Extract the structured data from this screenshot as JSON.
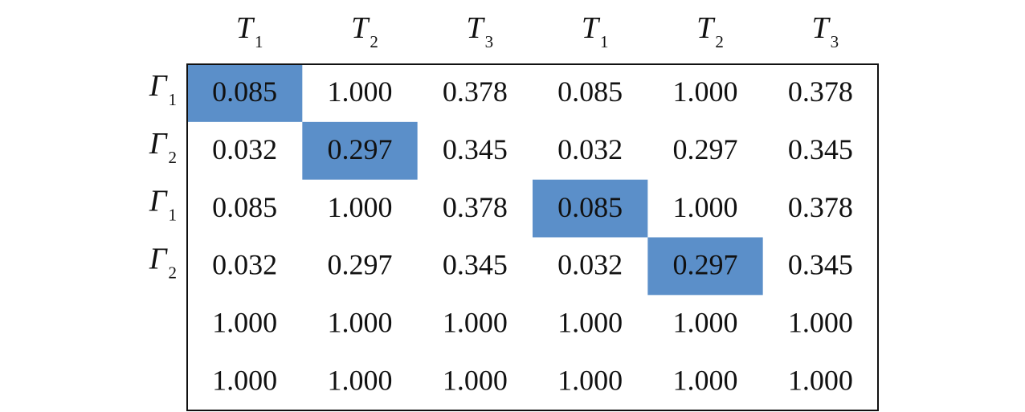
{
  "table": {
    "highlight_color": "#5b8fc9",
    "columns": [
      {
        "letter": "T",
        "sub": "1"
      },
      {
        "letter": "T",
        "sub": "2"
      },
      {
        "letter": "T",
        "sub": "3"
      },
      {
        "letter": "T",
        "sub": "1"
      },
      {
        "letter": "T",
        "sub": "2"
      },
      {
        "letter": "T",
        "sub": "3"
      }
    ],
    "row_labels": [
      {
        "letter": "Γ",
        "sub": "1"
      },
      {
        "letter": "Γ",
        "sub": "2"
      },
      {
        "letter": "Γ",
        "sub": "1"
      },
      {
        "letter": "Γ",
        "sub": "2"
      },
      null,
      null
    ],
    "rows": [
      [
        {
          "text": "0.085",
          "highlight": true
        },
        {
          "text": "1.000",
          "highlight": false
        },
        {
          "text": "0.378",
          "highlight": false
        },
        {
          "text": "0.085",
          "highlight": false
        },
        {
          "text": "1.000",
          "highlight": false
        },
        {
          "text": "0.378",
          "highlight": false
        }
      ],
      [
        {
          "text": "0.032",
          "highlight": false
        },
        {
          "text": "0.297",
          "highlight": true
        },
        {
          "text": "0.345",
          "highlight": false
        },
        {
          "text": "0.032",
          "highlight": false
        },
        {
          "text": "0.297",
          "highlight": false
        },
        {
          "text": "0.345",
          "highlight": false
        }
      ],
      [
        {
          "text": "0.085",
          "highlight": false
        },
        {
          "text": "1.000",
          "highlight": false
        },
        {
          "text": "0.378",
          "highlight": false
        },
        {
          "text": "0.085",
          "highlight": true
        },
        {
          "text": "1.000",
          "highlight": false
        },
        {
          "text": "0.378",
          "highlight": false
        }
      ],
      [
        {
          "text": "0.032",
          "highlight": false
        },
        {
          "text": "0.297",
          "highlight": false
        },
        {
          "text": "0.345",
          "highlight": false
        },
        {
          "text": "0.032",
          "highlight": false
        },
        {
          "text": "0.297",
          "highlight": true
        },
        {
          "text": "0.345",
          "highlight": false
        }
      ],
      [
        {
          "text": "1.000",
          "highlight": false
        },
        {
          "text": "1.000",
          "highlight": false
        },
        {
          "text": "1.000",
          "highlight": false
        },
        {
          "text": "1.000",
          "highlight": false
        },
        {
          "text": "1.000",
          "highlight": false
        },
        {
          "text": "1.000",
          "highlight": false
        }
      ],
      [
        {
          "text": "1.000",
          "highlight": false
        },
        {
          "text": "1.000",
          "highlight": false
        },
        {
          "text": "1.000",
          "highlight": false
        },
        {
          "text": "1.000",
          "highlight": false
        },
        {
          "text": "1.000",
          "highlight": false
        },
        {
          "text": "1.000",
          "highlight": false
        }
      ]
    ]
  }
}
